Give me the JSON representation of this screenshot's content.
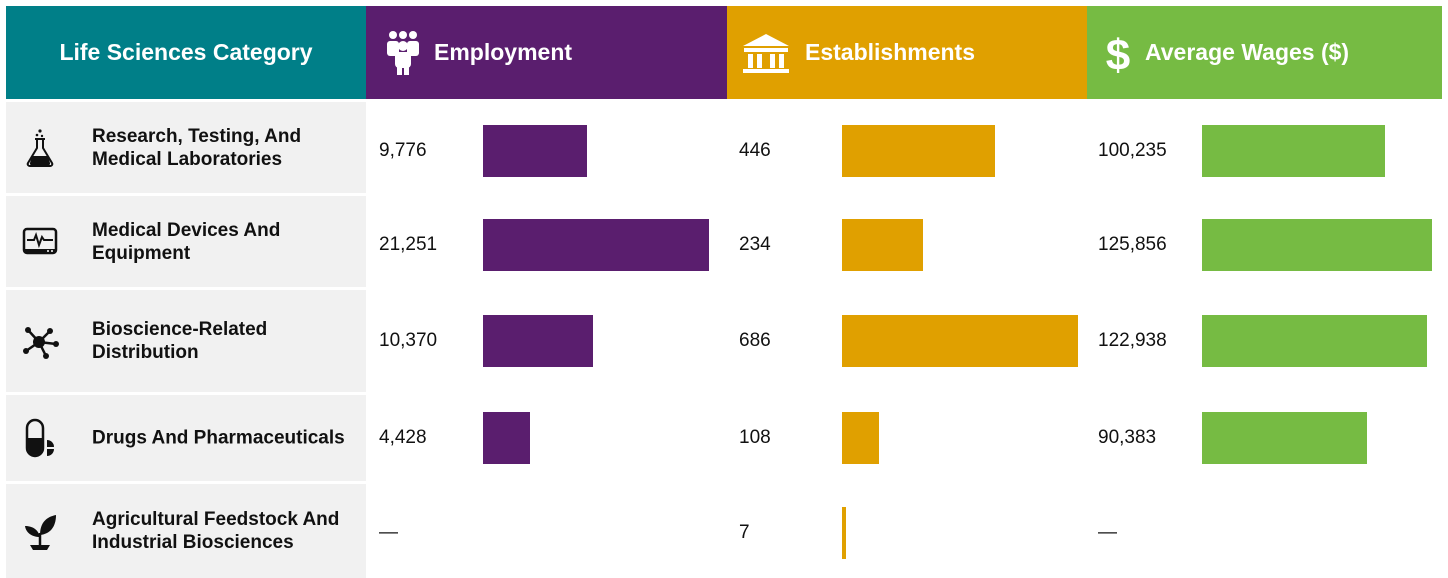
{
  "colors": {
    "category_header": "#007f88",
    "employment": "#5a1e6e",
    "establishments": "#e0a000",
    "wages": "#76bb43",
    "row_bg": "#f1f1f1"
  },
  "headers": {
    "category": "Life Sciences Category",
    "employment": "Employment",
    "establishments": "Establishments",
    "wages": "Average Wages ($)",
    "employment_icon": "people-icon",
    "establishments_icon": "bank-building-icon",
    "wages_icon": "dollar-icon"
  },
  "chart_data": {
    "type": "bar",
    "categories": [
      "Research, Testing, And Medical Laboratories",
      "Medical Devices And Equipment",
      "Bioscience-Related Distribution",
      "Drugs And Pharmaceuticals",
      "Agricultural Feedstock And Industrial Biosciences"
    ],
    "category_icons": [
      "flask-icon",
      "heart-monitor-icon",
      "molecule-network-icon",
      "pill-capsule-icon",
      "seedling-icon"
    ],
    "series": [
      {
        "name": "Employment",
        "values": [
          9776,
          21251,
          10370,
          4428,
          null
        ],
        "labels": [
          "9,776",
          "21,251",
          "10,370",
          "4,428",
          "—"
        ]
      },
      {
        "name": "Establishments",
        "values": [
          446,
          234,
          686,
          108,
          7
        ],
        "labels": [
          "446",
          "234",
          "686",
          "108",
          "7"
        ]
      },
      {
        "name": "Average Wages ($)",
        "values": [
          100235,
          125856,
          122938,
          90383,
          null
        ],
        "labels": [
          "100,235",
          "125,856",
          "122,938",
          "90,383",
          "—"
        ]
      }
    ]
  }
}
